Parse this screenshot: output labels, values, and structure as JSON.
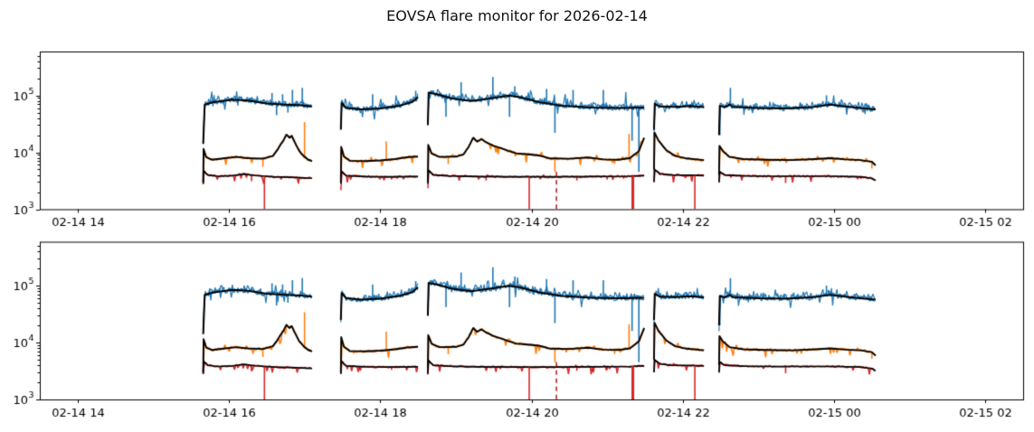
{
  "figure": {
    "title": "EOVSA flare monitor for 2026-02-14",
    "background": "#ffffff"
  },
  "chart_data": {
    "type": "line",
    "title": "EOVSA flare monitor for 2026-02-14",
    "xlabel": "",
    "ylabel": "",
    "x_unit": "hours after 2026-02-14 00:00 UT",
    "xlim": [
      13.5,
      26.5
    ],
    "ylim": [
      1000,
      590000
    ],
    "yscale": "log",
    "grid": false,
    "legend": null,
    "panels": [
      {
        "name": "top panel",
        "seed": 11
      },
      {
        "name": "bottom panel",
        "seed": 47
      }
    ],
    "x_ticks": [
      {
        "hour": 14,
        "label": "02-14 14"
      },
      {
        "hour": 16,
        "label": "02-14 16"
      },
      {
        "hour": 18,
        "label": "02-14 18"
      },
      {
        "hour": 20,
        "label": "02-14 20"
      },
      {
        "hour": 22,
        "label": "02-14 22"
      },
      {
        "hour": 24,
        "label": "02-15 00"
      },
      {
        "hour": 26,
        "label": "02-15 02"
      }
    ],
    "y_ticks": [
      {
        "value": 1000,
        "base": "10",
        "exp": "3"
      },
      {
        "value": 10000,
        "base": "10",
        "exp": "4"
      },
      {
        "value": 100000,
        "base": "10",
        "exp": "5"
      }
    ],
    "colors": {
      "blue": "#1f77b4",
      "orange": "#ff7f0e",
      "red": "#d62728",
      "dashed_red": "#b22222",
      "median": "#000000",
      "axis": "#000000",
      "text": "#000000",
      "background": "#ffffff"
    },
    "segments": [
      {
        "t": [
          15.66,
          17.1
        ],
        "blue": [
          [
            15.66,
            14000
          ],
          [
            15.68,
            69000
          ],
          [
            15.8,
            76000
          ],
          [
            16.05,
            84000
          ],
          [
            16.25,
            81000
          ],
          [
            16.5,
            72000
          ],
          [
            16.75,
            69000
          ],
          [
            16.95,
            67000
          ],
          [
            17.1,
            64000
          ]
        ],
        "orange": [
          [
            15.66,
            3000
          ],
          [
            15.665,
            11500
          ],
          [
            15.7,
            8200
          ],
          [
            15.78,
            7400
          ],
          [
            15.95,
            7900
          ],
          [
            16.1,
            8300
          ],
          [
            16.25,
            7900
          ],
          [
            16.45,
            7700
          ],
          [
            16.58,
            8600
          ],
          [
            16.64,
            11000
          ],
          [
            16.68,
            13500
          ],
          [
            16.72,
            16000
          ],
          [
            16.76,
            20500
          ],
          [
            16.8,
            18000
          ],
          [
            16.83,
            19500
          ],
          [
            16.87,
            15000
          ],
          [
            16.93,
            10500
          ],
          [
            17.0,
            8300
          ],
          [
            17.05,
            7400
          ],
          [
            17.1,
            7000
          ]
        ],
        "red": [
          [
            15.66,
            2800
          ],
          [
            15.665,
            4700
          ],
          [
            15.72,
            4000
          ],
          [
            15.85,
            3800
          ],
          [
            16.05,
            3900
          ],
          [
            16.2,
            4150
          ],
          [
            16.35,
            3900
          ],
          [
            16.6,
            3700
          ],
          [
            16.9,
            3600
          ],
          [
            17.1,
            3500
          ]
        ]
      },
      {
        "t": [
          17.48,
          18.5
        ],
        "blue": [
          [
            17.48,
            25000
          ],
          [
            17.49,
            74000
          ],
          [
            17.55,
            60000
          ],
          [
            17.75,
            57000
          ],
          [
            18.0,
            59000
          ],
          [
            18.25,
            66000
          ],
          [
            18.42,
            76000
          ],
          [
            18.5,
            93000
          ]
        ],
        "orange": [
          [
            17.48,
            3000
          ],
          [
            17.485,
            12500
          ],
          [
            17.52,
            8500
          ],
          [
            17.6,
            7100
          ],
          [
            17.8,
            7000
          ],
          [
            18.0,
            7200
          ],
          [
            18.2,
            7600
          ],
          [
            18.35,
            8200
          ],
          [
            18.5,
            8400
          ]
        ],
        "red": [
          [
            17.48,
            2800
          ],
          [
            17.485,
            4700
          ],
          [
            17.55,
            3900
          ],
          [
            17.8,
            3750
          ],
          [
            18.1,
            3700
          ],
          [
            18.5,
            3750
          ]
        ]
      },
      {
        "t": [
          18.63,
          21.49
        ],
        "blue": [
          [
            18.63,
            30000
          ],
          [
            18.64,
            112000
          ],
          [
            18.75,
            105000
          ],
          [
            18.95,
            88000
          ],
          [
            19.2,
            80000
          ],
          [
            19.45,
            88000
          ],
          [
            19.7,
            99000
          ],
          [
            19.85,
            93000
          ],
          [
            20.1,
            76000
          ],
          [
            20.4,
            66000
          ],
          [
            20.8,
            61000
          ],
          [
            21.2,
            60000
          ],
          [
            21.49,
            61000
          ]
        ],
        "orange": [
          [
            18.63,
            3000
          ],
          [
            18.635,
            13500
          ],
          [
            18.68,
            9500
          ],
          [
            18.78,
            8300
          ],
          [
            19.0,
            8400
          ],
          [
            19.1,
            9200
          ],
          [
            19.17,
            12500
          ],
          [
            19.23,
            18000
          ],
          [
            19.28,
            15500
          ],
          [
            19.34,
            17000
          ],
          [
            19.4,
            15000
          ],
          [
            19.5,
            13000
          ],
          [
            19.62,
            11500
          ],
          [
            19.7,
            10500
          ],
          [
            19.8,
            9600
          ],
          [
            19.95,
            9200
          ],
          [
            20.1,
            8800
          ],
          [
            20.25,
            7800
          ],
          [
            20.5,
            7700
          ],
          [
            20.75,
            8100
          ],
          [
            20.95,
            7500
          ],
          [
            21.15,
            7400
          ],
          [
            21.3,
            7900
          ],
          [
            21.42,
            10500
          ],
          [
            21.49,
            18000
          ]
        ],
        "red": [
          [
            18.63,
            2800
          ],
          [
            18.635,
            4900
          ],
          [
            18.7,
            4000
          ],
          [
            18.9,
            3850
          ],
          [
            19.3,
            3750
          ],
          [
            19.8,
            3700
          ],
          [
            20.3,
            3700
          ],
          [
            20.8,
            3750
          ],
          [
            21.3,
            3800
          ],
          [
            21.49,
            3900
          ]
        ]
      },
      {
        "t": [
          21.62,
          22.28
        ],
        "blue": [
          [
            21.62,
            25000
          ],
          [
            21.63,
            72000
          ],
          [
            21.7,
            64000
          ],
          [
            21.9,
            63000
          ],
          [
            22.1,
            65000
          ],
          [
            22.28,
            62000
          ]
        ],
        "orange": [
          [
            21.62,
            5000
          ],
          [
            21.625,
            22500
          ],
          [
            21.68,
            16000
          ],
          [
            21.78,
            11000
          ],
          [
            21.9,
            8600
          ],
          [
            22.05,
            7800
          ],
          [
            22.28,
            7300
          ]
        ],
        "red": [
          [
            21.62,
            3000
          ],
          [
            21.625,
            5000
          ],
          [
            21.7,
            4200
          ],
          [
            21.85,
            4000
          ],
          [
            22.1,
            3950
          ],
          [
            22.28,
            3900
          ]
        ]
      },
      {
        "t": [
          22.48,
          24.55
        ],
        "blue": [
          [
            22.48,
            20000
          ],
          [
            22.49,
            66000
          ],
          [
            22.55,
            62000
          ],
          [
            22.62,
            69000
          ],
          [
            22.66,
            63000
          ],
          [
            23.0,
            60000
          ],
          [
            23.35,
            59000
          ],
          [
            23.7,
            62000
          ],
          [
            23.95,
            69000
          ],
          [
            24.15,
            64000
          ],
          [
            24.4,
            59000
          ],
          [
            24.55,
            57000
          ]
        ],
        "orange": [
          [
            22.48,
            4000
          ],
          [
            22.485,
            13000
          ],
          [
            22.53,
            10500
          ],
          [
            22.62,
            8300
          ],
          [
            22.8,
            7600
          ],
          [
            23.1,
            7400
          ],
          [
            23.45,
            7300
          ],
          [
            23.75,
            7600
          ],
          [
            23.95,
            7900
          ],
          [
            24.15,
            7500
          ],
          [
            24.35,
            7300
          ],
          [
            24.5,
            6800
          ],
          [
            24.55,
            5900
          ]
        ],
        "red": [
          [
            22.48,
            3000
          ],
          [
            22.485,
            4600
          ],
          [
            22.55,
            4000
          ],
          [
            22.8,
            3850
          ],
          [
            23.2,
            3800
          ],
          [
            23.6,
            3800
          ],
          [
            24.0,
            3800
          ],
          [
            24.35,
            3700
          ],
          [
            24.5,
            3500
          ],
          [
            24.55,
            3200
          ]
        ]
      }
    ],
    "spikes": {
      "blue_up": [
        [
          16.57,
          110000
        ],
        [
          16.71,
          105000
        ],
        [
          16.84,
          125000
        ],
        [
          16.97,
          135000
        ],
        [
          17.9,
          105000
        ],
        [
          18.47,
          120000
        ],
        [
          19.07,
          170000
        ],
        [
          19.49,
          210000
        ],
        [
          19.78,
          145000
        ],
        [
          20.2,
          130000
        ],
        [
          20.55,
          125000
        ],
        [
          20.95,
          125000
        ],
        [
          22.63,
          135000
        ],
        [
          23.9,
          100000
        ]
      ],
      "blue_down": [
        [
          16.63,
          45000
        ],
        [
          16.78,
          50000
        ],
        [
          18.87,
          42000
        ],
        [
          19.71,
          42000
        ],
        [
          20.31,
          22000
        ],
        [
          21.33,
          16000
        ],
        [
          21.42,
          4500
        ],
        [
          22.49,
          20000
        ]
      ],
      "orange_up": [
        [
          17.0,
          34000
        ],
        [
          18.08,
          15500
        ],
        [
          21.29,
          21000
        ]
      ],
      "orange_down": [
        [
          16.45,
          5600
        ],
        [
          18.9,
          6200
        ],
        [
          20.31,
          4500
        ],
        [
          21.1,
          6300
        ],
        [
          24.5,
          5200
        ]
      ],
      "red_down": [
        [
          16.3,
          3100
        ],
        [
          18.15,
          3300
        ],
        [
          19.4,
          3200
        ],
        [
          20.6,
          3200
        ],
        [
          21.0,
          3300
        ],
        [
          23.36,
          2900
        ]
      ]
    },
    "vlines": [
      {
        "t": 16.47,
        "style": "solid",
        "lw": 1.6
      },
      {
        "t": 19.97,
        "style": "solid",
        "lw": 1.6
      },
      {
        "t": 20.33,
        "style": "dashed",
        "lw": 1.6,
        "from": 4500
      },
      {
        "t": 21.34,
        "style": "solid",
        "lw": 3
      },
      {
        "t": 22.16,
        "style": "solid",
        "lw": 1.6
      }
    ]
  }
}
